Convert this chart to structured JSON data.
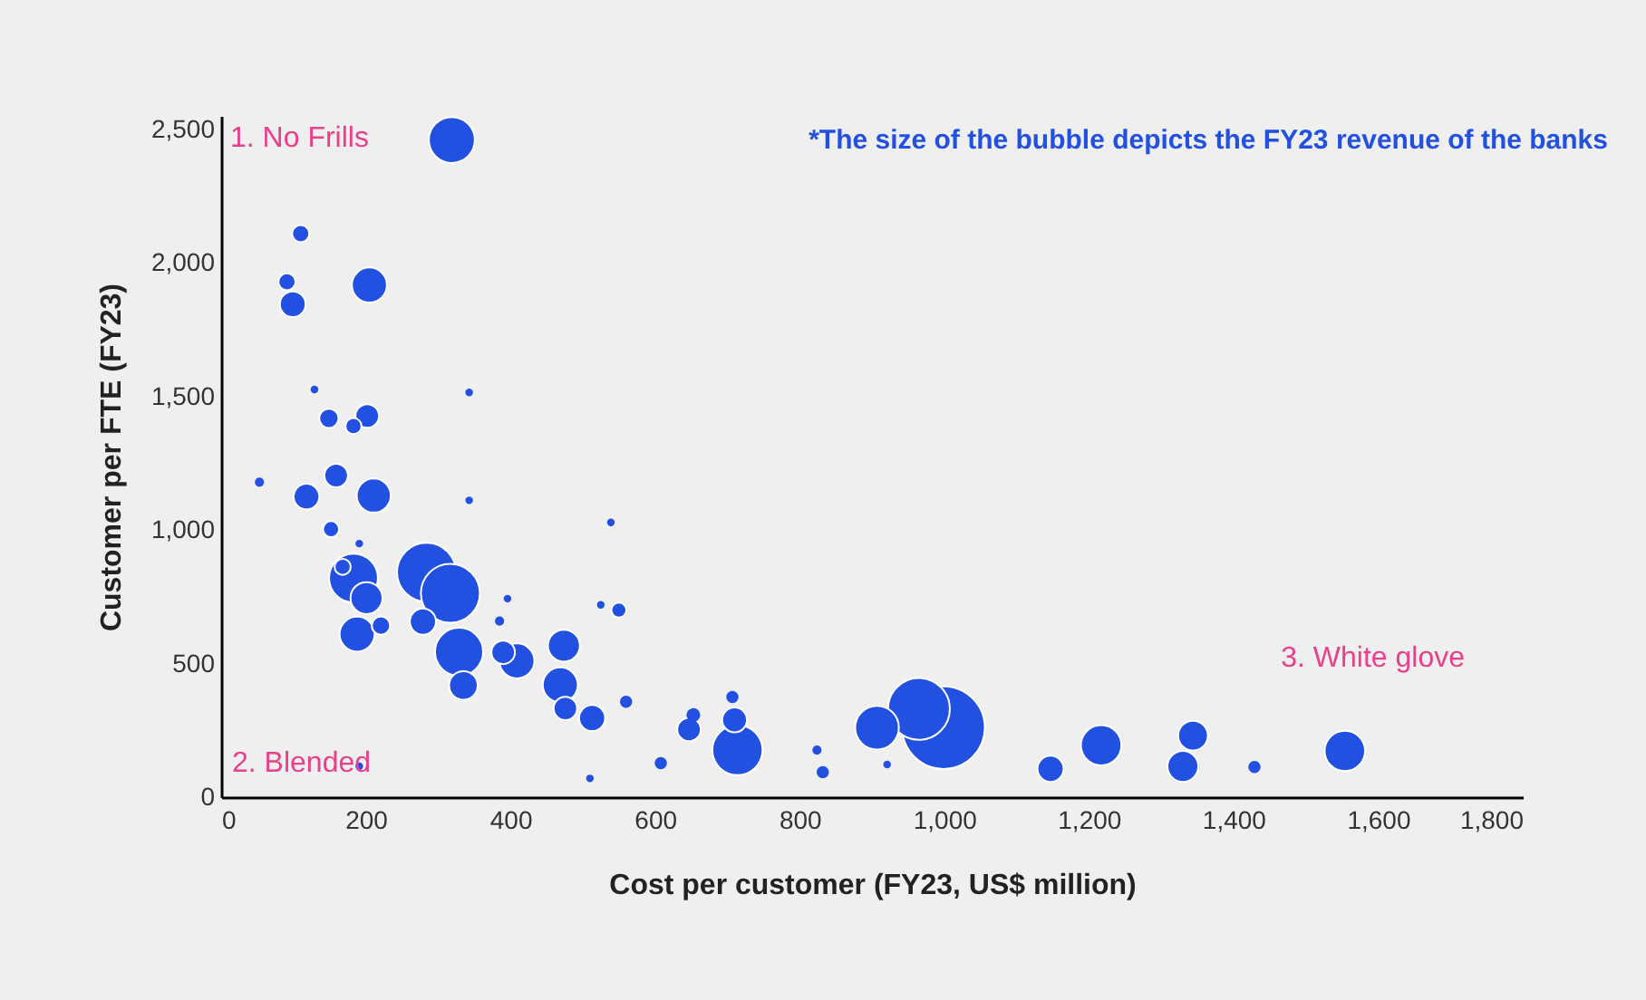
{
  "chart_data": {
    "type": "bubble",
    "xlabel": "Cost per customer (FY23, US$ million)",
    "ylabel": "Customer per FTE (FY23)",
    "annotations": [
      "*The size of the bubble depicts the FY23 revenue of the banks",
      "1. No Frills",
      "2. Blended",
      "3. White glove"
    ],
    "xlim": [
      0,
      1800
    ],
    "xticks": [
      0,
      200,
      400,
      600,
      800,
      {
        "value": 1000,
        "label": "1,000"
      },
      {
        "value": 1200,
        "label": "1,200"
      },
      {
        "value": 1400,
        "label": "1,400"
      },
      {
        "value": 1600,
        "label": "1,600"
      },
      {
        "value": 1800,
        "label": "1,800"
      }
    ],
    "ylim": [
      0,
      2550
    ],
    "yticks": [
      0,
      500,
      {
        "value": 1000,
        "label": "1,000"
      },
      {
        "value": 1500,
        "label": "1,500"
      },
      {
        "value": 2000,
        "label": "2,000"
      },
      {
        "value": 2500,
        "label": "2,500"
      }
    ],
    "grid": false,
    "legend": false,
    "series": [
      {
        "color": "#2250e0",
        "x": [
          999,
          965,
          284,
          317,
          907,
          183,
          329,
          714,
          319,
          1217,
          1554,
          201,
          188,
          211,
          205,
          335,
          409,
          474,
          469,
          99,
          279,
          1147,
          1344,
          1330,
          390,
          513,
          476,
          110,
          91,
          149,
          202,
          159,
          118,
          183,
          152,
          221,
          647,
          710,
          550,
          653,
          707,
          168,
          560,
          1429,
          832,
          608,
          824,
          191,
          53,
          921,
          510,
          343,
          191,
          539,
          343,
          525,
          129,
          385,
          396
        ],
        "values": [
          260,
          330,
          842,
          763,
          260,
          820,
          544,
          176,
          2460,
          194,
          173,
          745,
          610,
          1129,
          1917,
          418,
          510,
          567,
          420,
          1845,
          657,
          106,
          230,
          115,
          542,
          296,
          332,
          2109,
          1929,
          1418,
          1427,
          1204,
          1125,
          1389,
          1003,
          642,
          253,
          289,
          700,
          307,
          375,
          862,
          357,
          113,
          93,
          127,
          176,
          949,
          1179,
          122,
          70,
          1111,
          115,
          1028,
          1515,
          720,
          1526,
          659,
          743
        ],
        "sizes": [
          1,
          0.56,
          0.51,
          0.51,
          0.28,
          0.35,
          0.34,
          0.37,
          0.31,
          0.24,
          0.24,
          0.15,
          0.18,
          0.17,
          0.18,
          0.12,
          0.18,
          0.15,
          0.18,
          0.097,
          0.1,
          0.1,
          0.13,
          0.14,
          0.081,
          0.1,
          0.081,
          0.043,
          0.043,
          0.055,
          0.081,
          0.081,
          0.097,
          0.038,
          0.038,
          0.049,
          0.081,
          0.09,
          0.033,
          0.021,
          0.016,
          0.038,
          0.016,
          0.016,
          0.016,
          0.016,
          0.008,
          0.005,
          0.008,
          0.005,
          0.005,
          0.005,
          0.005,
          0.005,
          0.005,
          0.005,
          0.005,
          0.008,
          0.005
        ]
      }
    ]
  }
}
